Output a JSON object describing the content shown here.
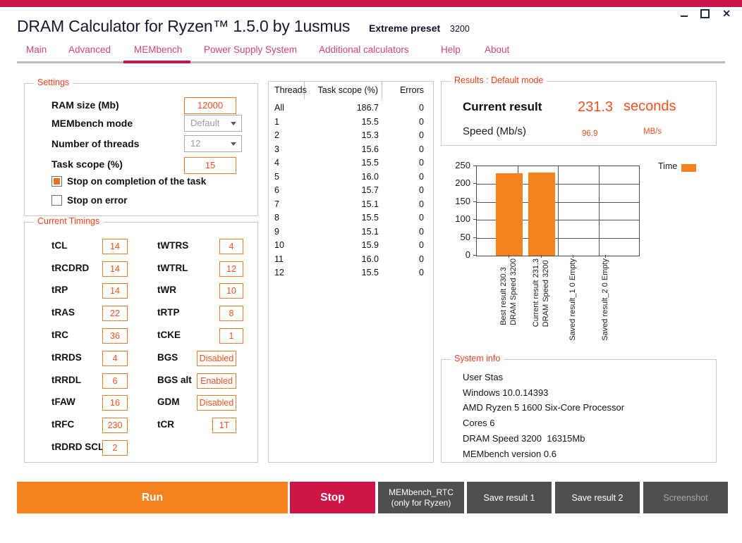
{
  "window": {
    "title": "DRAM Calculator for Ryzen™ 1.5.0 by 1usmus",
    "preset_label": "Extreme preset",
    "preset_value": "3200",
    "close_glyph": "✕"
  },
  "nav": {
    "tabs": [
      {
        "label": "Main",
        "active": false
      },
      {
        "label": "Advanced",
        "active": false
      },
      {
        "label": "MEMbench",
        "active": true
      },
      {
        "label": "Power Supply System",
        "active": false
      },
      {
        "label": "Additional calculators",
        "active": false
      },
      {
        "label": "Help",
        "active": false
      },
      {
        "label": "About",
        "active": false
      }
    ]
  },
  "settings": {
    "title": "Settings",
    "fields": [
      {
        "key": "ram-size",
        "label": "RAM size (Mb)",
        "value": "12000",
        "type": "input",
        "disabled": false
      },
      {
        "key": "membench-mode",
        "label": "MEMbench mode",
        "value": "Default",
        "type": "select",
        "disabled": true
      },
      {
        "key": "number-of-threads",
        "label": "Number of threads",
        "value": "12",
        "type": "select",
        "disabled": true
      },
      {
        "key": "task-scope",
        "label": "Task scope (%)",
        "value": "15",
        "type": "input",
        "disabled": false
      }
    ],
    "checkboxes": [
      {
        "key": "stop-on-completion",
        "label": "Stop on completion of the task",
        "checked": true
      },
      {
        "key": "stop-on-error",
        "label": "Stop on error",
        "checked": false
      }
    ]
  },
  "timings": {
    "title": "Current Timings",
    "left": [
      {
        "label": "tCL",
        "value": "14"
      },
      {
        "label": "tRCDRD",
        "value": "14"
      },
      {
        "label": "tRP",
        "value": "14"
      },
      {
        "label": "tRAS",
        "value": "22"
      },
      {
        "label": "tRC",
        "value": "36"
      },
      {
        "label": "tRRDS",
        "value": "4"
      },
      {
        "label": "tRRDL",
        "value": "6"
      },
      {
        "label": "tFAW",
        "value": "16"
      },
      {
        "label": "tRFC",
        "value": "230"
      },
      {
        "label": "tRDRD SCL",
        "value": "2"
      }
    ],
    "right": [
      {
        "label": "tWTRS",
        "value": "4"
      },
      {
        "label": "tWTRL",
        "value": "12"
      },
      {
        "label": "tWR",
        "value": "10"
      },
      {
        "label": "tRTP",
        "value": "8"
      },
      {
        "label": "tCKE",
        "value": "1"
      },
      {
        "label": "BGS",
        "value": "Disabled"
      },
      {
        "label": "BGS alt",
        "value": "Enabled"
      },
      {
        "label": "GDM",
        "value": "Disabled"
      },
      {
        "label": "tCR",
        "value": "1T"
      }
    ]
  },
  "thread_table": {
    "headers": [
      "Threads",
      "Task scope (%)",
      "Errors"
    ],
    "rows": [
      [
        "All",
        "186.7",
        "0"
      ],
      [
        "1",
        "15.5",
        "0"
      ],
      [
        "2",
        "15.3",
        "0"
      ],
      [
        "3",
        "15.6",
        "0"
      ],
      [
        "4",
        "15.5",
        "0"
      ],
      [
        "5",
        "16.0",
        "0"
      ],
      [
        "6",
        "15.7",
        "0"
      ],
      [
        "7",
        "15.1",
        "0"
      ],
      [
        "8",
        "15.5",
        "0"
      ],
      [
        "9",
        "15.1",
        "0"
      ],
      [
        "10",
        "15.9",
        "0"
      ],
      [
        "11",
        "16.0",
        "0"
      ],
      [
        "12",
        "15.5",
        "0"
      ]
    ]
  },
  "results": {
    "title": "Results : Default mode",
    "current_result_label": "Current result",
    "current_result_value": "231.3",
    "current_result_unit": "seconds",
    "speed_label": "Speed (Mb/s)",
    "speed_value": "96.9",
    "speed_unit": "MB/s"
  },
  "chart_data": {
    "type": "bar",
    "categories": [
      [
        "Best result 230.3",
        "DRAM Speed 3200"
      ],
      [
        "Current result 231.3",
        "DRAM Speed 3200"
      ],
      [
        "Saved result_1 0 Empty"
      ],
      [
        "Saved result_2 0 Empty"
      ]
    ],
    "values": [
      230.3,
      231.3,
      0,
      0
    ],
    "series_name": "Time",
    "ylim": [
      0,
      250
    ],
    "yticks": [
      0,
      50,
      100,
      150,
      200,
      250
    ],
    "grid": true,
    "legend_position": "top-right",
    "bar_color": "#F5821F"
  },
  "system_info": {
    "title": "System info",
    "lines": [
      "User Stas",
      "Windows 10.0.14393",
      "AMD Ryzen 5 1600 Six-Core Processor",
      "Cores 6",
      "DRAM Speed 3200  16315Mb",
      "MEMbench version 0.6"
    ]
  },
  "actions": {
    "run": "Run",
    "stop": "Stop",
    "membench_rtc_line1": "MEMbench_RTC",
    "membench_rtc_line2": "(only for Ryzen)",
    "save1": "Save result 1",
    "save2": "Save result 2",
    "screenshot": "Screenshot"
  },
  "colors": {
    "accent_crimson": "#C9164A",
    "accent_orange": "#F5821F",
    "value_orange": "#F4511E",
    "label_orange": "#FB3E18",
    "button_gray": "#4F4F4F",
    "disabled_text": "#9A9A9A"
  }
}
